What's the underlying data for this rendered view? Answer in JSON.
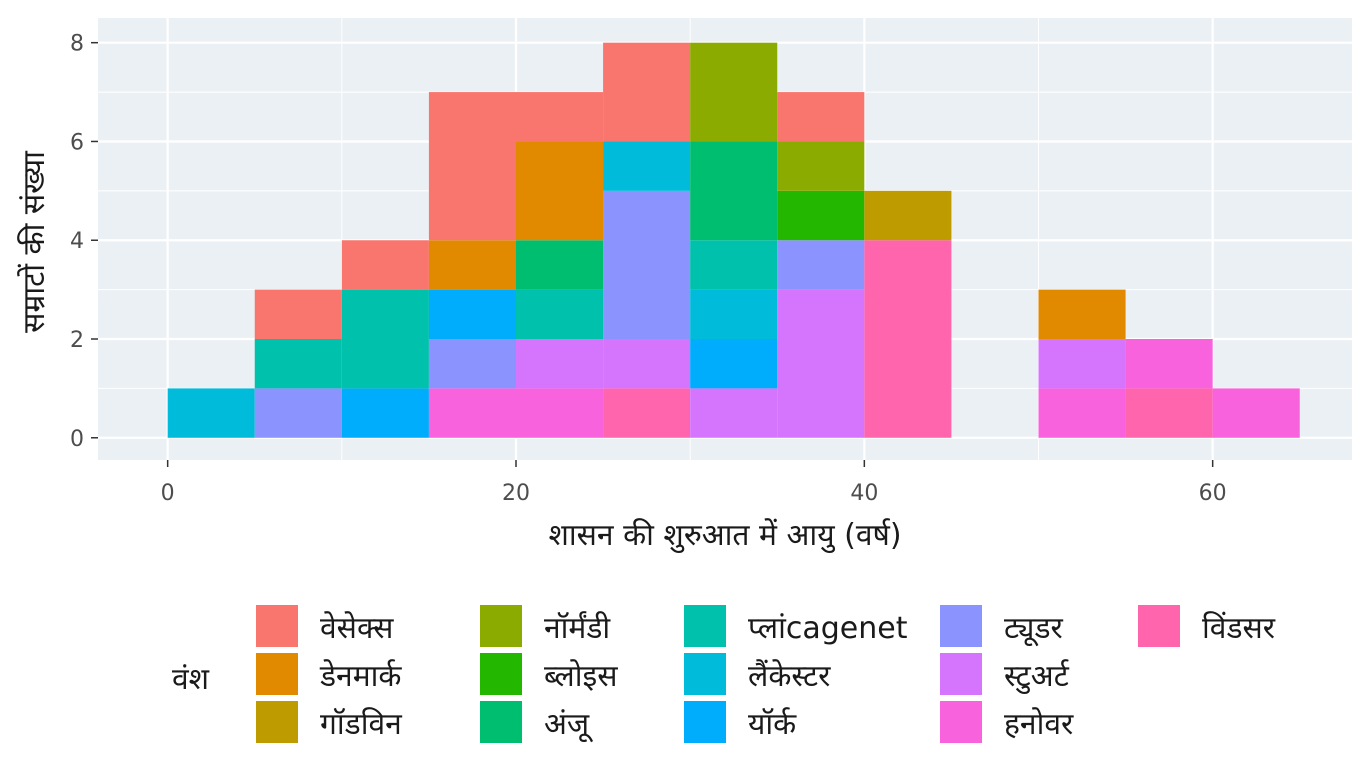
{
  "chart_data": {
    "type": "bar",
    "subtype": "stacked-histogram",
    "title": "",
    "xlabel": "शासन की शुरुआत में आयु (वर्ष)",
    "ylabel": "सम्राटों की संख्या",
    "bin_width": 5,
    "xlim": [
      -4,
      68
    ],
    "ylim": [
      -0.45,
      8.5
    ],
    "xticks": [
      0,
      20,
      40,
      60
    ],
    "yticks": [
      0,
      2,
      4,
      6,
      8
    ],
    "grid": true,
    "legend_title": "वंश",
    "legend_position": "bottom",
    "series": [
      {
        "name": "वेसेक्स",
        "color": "#F8766D"
      },
      {
        "name": "डेनमार्क",
        "color": "#E18A00"
      },
      {
        "name": "गॉडविन",
        "color": "#BE9C00"
      },
      {
        "name": "नॉर्मंडी",
        "color": "#8CAB00"
      },
      {
        "name": "ब्लोइस",
        "color": "#24B700"
      },
      {
        "name": "अंजू",
        "color": "#00BE70"
      },
      {
        "name": "प्लांcagenet",
        "color": "#00C1AB"
      },
      {
        "name": "लैंकेस्टर",
        "color": "#00BBDA"
      },
      {
        "name": "यॉर्क",
        "color": "#00ACFC"
      },
      {
        "name": "ट्यूडर",
        "color": "#8B93FF"
      },
      {
        "name": "स्टुअर्ट",
        "color": "#D575FE"
      },
      {
        "name": "हनोवर",
        "color": "#F962DD"
      },
      {
        "name": "विंडसर",
        "color": "#FF65AC"
      }
    ],
    "bins": [
      {
        "x_start": 0,
        "stack": [
          {
            "series": "लैंकेस्टर",
            "count": 1
          }
        ]
      },
      {
        "x_start": 5,
        "stack": [
          {
            "series": "ट्यूडर",
            "count": 1
          },
          {
            "series": "प्लांcagenet",
            "count": 1
          },
          {
            "series": "वेसेक्स",
            "count": 1
          }
        ]
      },
      {
        "x_start": 10,
        "stack": [
          {
            "series": "यॉर्क",
            "count": 1
          },
          {
            "series": "प्लांcagenet",
            "count": 2
          },
          {
            "series": "वेसेक्स",
            "count": 1
          }
        ]
      },
      {
        "x_start": 15,
        "stack": [
          {
            "series": "हनोवर",
            "count": 1
          },
          {
            "series": "ट्यूडर",
            "count": 1
          },
          {
            "series": "यॉर्क",
            "count": 1
          },
          {
            "series": "डेनमार्क",
            "count": 1
          },
          {
            "series": "वेसेक्स",
            "count": 3
          }
        ]
      },
      {
        "x_start": 20,
        "stack": [
          {
            "series": "हनोवर",
            "count": 1
          },
          {
            "series": "स्टुअर्ट",
            "count": 1
          },
          {
            "series": "प्लांcagenet",
            "count": 1
          },
          {
            "series": "अंजू",
            "count": 1
          },
          {
            "series": "डेनमार्क",
            "count": 2
          },
          {
            "series": "वेसेक्स",
            "count": 1
          }
        ]
      },
      {
        "x_start": 25,
        "stack": [
          {
            "series": "विंडसर",
            "count": 1
          },
          {
            "series": "स्टुअर्ट",
            "count": 1
          },
          {
            "series": "ट्यूडर",
            "count": 3
          },
          {
            "series": "लैंकेस्टर",
            "count": 1
          },
          {
            "series": "वेसेक्स",
            "count": 2
          }
        ]
      },
      {
        "x_start": 30,
        "stack": [
          {
            "series": "स्टुअर्ट",
            "count": 1
          },
          {
            "series": "यॉर्क",
            "count": 1
          },
          {
            "series": "लैंकेस्टर",
            "count": 1
          },
          {
            "series": "प्लांcagenet",
            "count": 1
          },
          {
            "series": "अंजू",
            "count": 2
          },
          {
            "series": "नॉर्मंडी",
            "count": 2
          }
        ]
      },
      {
        "x_start": 35,
        "stack": [
          {
            "series": "स्टुअर्ट",
            "count": 3
          },
          {
            "series": "ट्यूडर",
            "count": 1
          },
          {
            "series": "ब्लोइस",
            "count": 1
          },
          {
            "series": "नॉर्मंडी",
            "count": 1
          },
          {
            "series": "वेसेक्स",
            "count": 1
          }
        ]
      },
      {
        "x_start": 40,
        "stack": [
          {
            "series": "विंडसर",
            "count": 4
          },
          {
            "series": "गॉडविन",
            "count": 1
          }
        ]
      },
      {
        "x_start": 50,
        "stack": [
          {
            "series": "हनोवर",
            "count": 1
          },
          {
            "series": "स्टुअर्ट",
            "count": 1
          },
          {
            "series": "डेनमार्क",
            "count": 1
          }
        ]
      },
      {
        "x_start": 55,
        "stack": [
          {
            "series": "विंडसर",
            "count": 1
          },
          {
            "series": "हनोवर",
            "count": 1
          }
        ]
      },
      {
        "x_start": 60,
        "stack": [
          {
            "series": "हनोवर",
            "count": 1
          }
        ]
      }
    ]
  }
}
